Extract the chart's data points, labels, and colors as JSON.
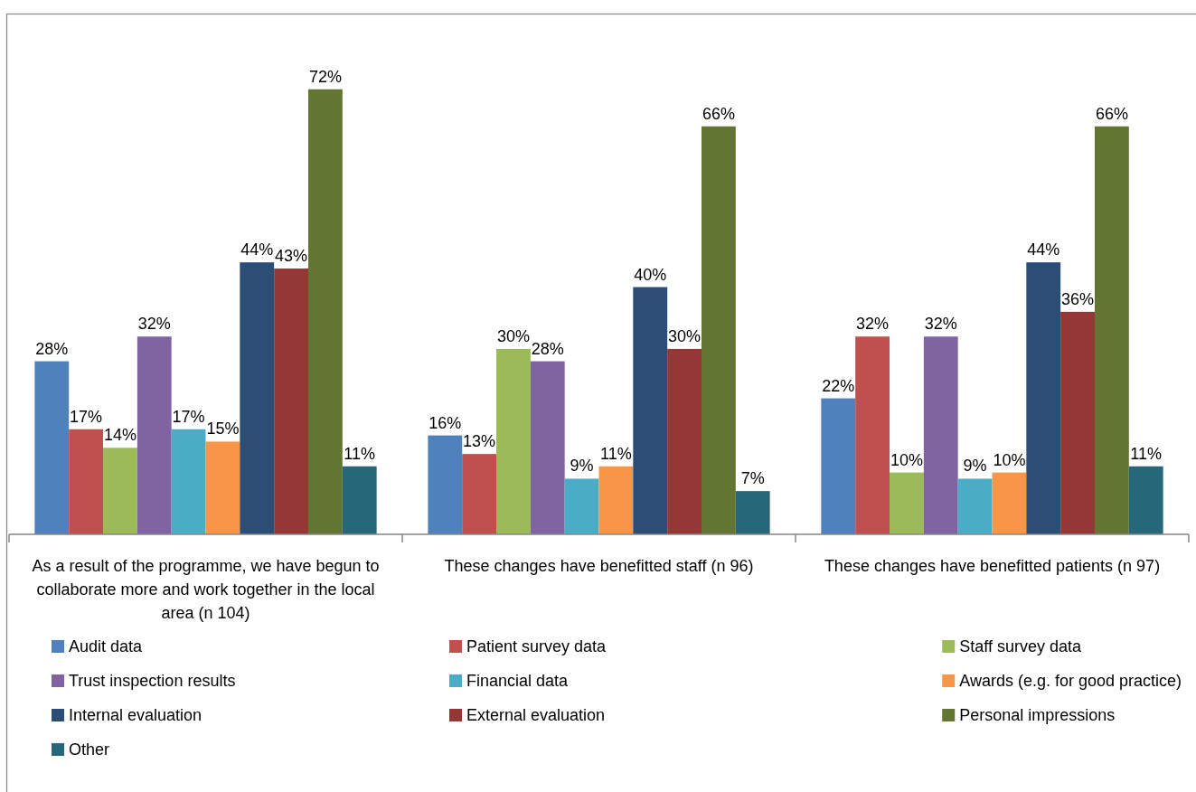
{
  "chart_data": {
    "type": "bar",
    "categories": [
      "As a result of the programme, we have begun to collaborate more and work together in the local area (n 104)",
      "These changes have benefitted staff (n 96)",
      "These changes have benefitted patients (n 97)"
    ],
    "series": [
      {
        "name": "Audit data",
        "color": "#4f81bd",
        "values": [
          28,
          16,
          22
        ],
        "value_labels": [
          "28%",
          "16%",
          "22%"
        ]
      },
      {
        "name": "Patient survey data",
        "color": "#c0504d",
        "values": [
          17,
          13,
          32
        ],
        "value_labels": [
          "17%",
          "13%",
          "32%"
        ]
      },
      {
        "name": "Staff survey data",
        "color": "#9bbb59",
        "values": [
          14,
          30,
          10
        ],
        "value_labels": [
          "14%",
          "30%",
          "10%"
        ]
      },
      {
        "name": "Trust inspection results",
        "color": "#8064a2",
        "values": [
          32,
          28,
          32
        ],
        "value_labels": [
          "32%",
          "28%",
          "32%"
        ]
      },
      {
        "name": "Financial data",
        "color": "#4bacc6",
        "values": [
          17,
          9,
          9
        ],
        "value_labels": [
          "17%",
          "9%",
          "9%"
        ]
      },
      {
        "name": "Awards (e.g. for good practice)",
        "color": "#f79646",
        "values": [
          15,
          11,
          10
        ],
        "value_labels": [
          "15%",
          "11%",
          "10%"
        ]
      },
      {
        "name": "Internal evaluation",
        "color": "#2c4d75",
        "values": [
          44,
          40,
          44
        ],
        "value_labels": [
          "44%",
          "40%",
          "44%"
        ]
      },
      {
        "name": "External evaluation",
        "color": "#953735",
        "values": [
          43,
          30,
          36
        ],
        "value_labels": [
          "43%",
          "30%",
          "36%"
        ]
      },
      {
        "name": "Personal impressions",
        "color": "#627532",
        "values": [
          72,
          66,
          66
        ],
        "value_labels": [
          "72%",
          "66%",
          "66%"
        ]
      },
      {
        "name": "Other",
        "color": "#26687a",
        "values": [
          11,
          7,
          11
        ],
        "value_labels": [
          "11%",
          "7%",
          "11%"
        ]
      }
    ],
    "legend": "bottom"
  }
}
